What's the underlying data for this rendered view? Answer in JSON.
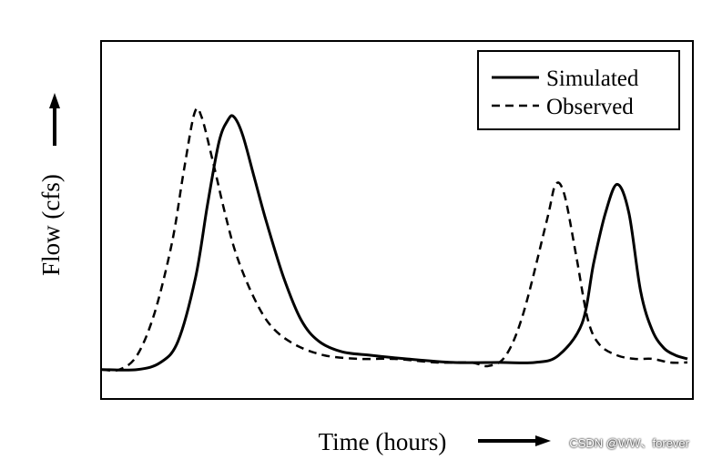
{
  "chart_data": {
    "type": "line",
    "xlabel": "Time (hours)",
    "ylabel": "Flow (cfs)",
    "xlim": [
      0,
      100
    ],
    "ylim": [
      0,
      100
    ],
    "grid": false,
    "legend_position": "top-right",
    "series": [
      {
        "name": "Simulated",
        "style": "solid",
        "color": "#000000",
        "x": [
          0,
          6,
          10,
          13,
          16,
          18,
          20,
          21.5,
          22.5,
          24,
          26,
          28,
          31,
          34,
          37,
          41,
          46,
          52,
          60,
          68,
          74,
          78,
          82,
          84,
          86,
          88,
          90,
          92,
          94,
          96,
          98,
          100
        ],
        "y": [
          8,
          8,
          10,
          16,
          34,
          54,
          72,
          78,
          79,
          74,
          62,
          50,
          34,
          22,
          16,
          13,
          12,
          11,
          10,
          10,
          10,
          12,
          21,
          38,
          52,
          60,
          52,
          30,
          19,
          14,
          12,
          11
        ]
      },
      {
        "name": "Observed",
        "style": "dashed",
        "color": "#000000",
        "x": [
          0,
          3,
          6,
          9,
          12,
          14,
          15.8,
          17,
          19,
          21,
          23,
          26,
          29,
          33,
          38,
          44,
          50,
          57,
          63,
          66,
          69,
          72,
          76,
          77.5,
          79,
          81,
          83,
          85,
          88,
          91,
          94,
          97,
          100
        ],
        "y": [
          8,
          8,
          12,
          24,
          44,
          64,
          80,
          79,
          66,
          52,
          40,
          28,
          20,
          15,
          12,
          11,
          11,
          10,
          10,
          9,
          12,
          24,
          50,
          60,
          57,
          40,
          22,
          15,
          12,
          11,
          11,
          10,
          10
        ]
      }
    ]
  },
  "watermark": "CSDN @WW、forever"
}
